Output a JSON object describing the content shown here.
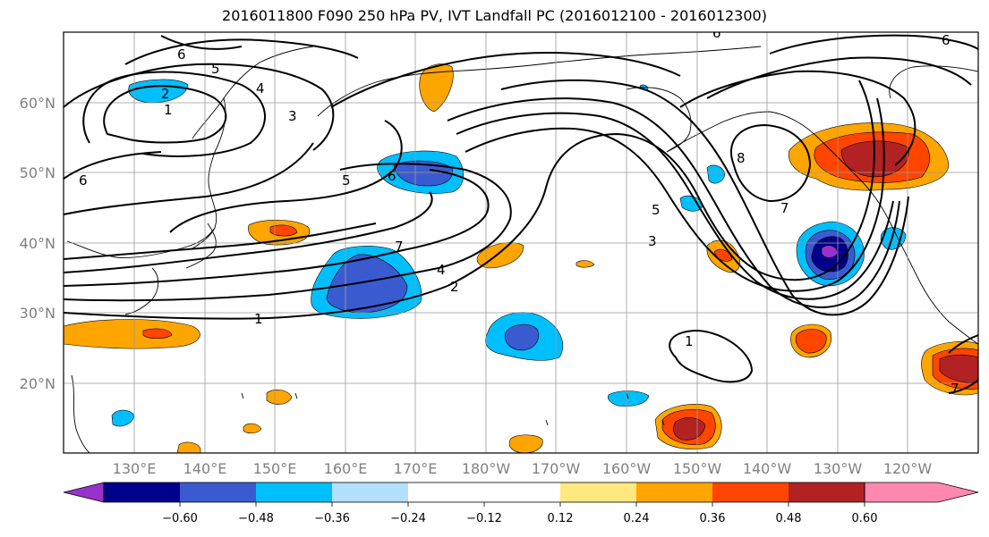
{
  "title": "2016011800 F090 250 hPa PV, IVT Landfall PC (2016012100 - 2016012300)",
  "lat_labels": [
    "60°N",
    "50°N",
    "40°N",
    "30°N",
    "20°N"
  ],
  "lon_labels": [
    "130°E",
    "140°E",
    "150°E",
    "160°E",
    "170°E",
    "180°W",
    "170°W",
    "160°W",
    "150°W",
    "140°W",
    "130°W",
    "120°W"
  ],
  "contour_labels": [
    "6",
    "5",
    "4",
    "3",
    "2",
    "1",
    "6",
    "5",
    "7",
    "4",
    "2",
    "1",
    "6",
    "5",
    "3",
    "8",
    "7",
    "1",
    "7",
    "6",
    "6"
  ],
  "colorbar": {
    "ticks": [
      "−0.60",
      "−0.48",
      "−0.36",
      "−0.24",
      "−0.12",
      "0.12",
      "0.24",
      "0.36",
      "0.48",
      "0.60"
    ],
    "colors": [
      "#9932cc",
      "#00008b",
      "#3a5bd0",
      "#00bfff",
      "#b3e0ff",
      "#ffffff",
      "#ffe880",
      "#ffa500",
      "#ff4500",
      "#b22222",
      "#ff88b0"
    ]
  }
}
